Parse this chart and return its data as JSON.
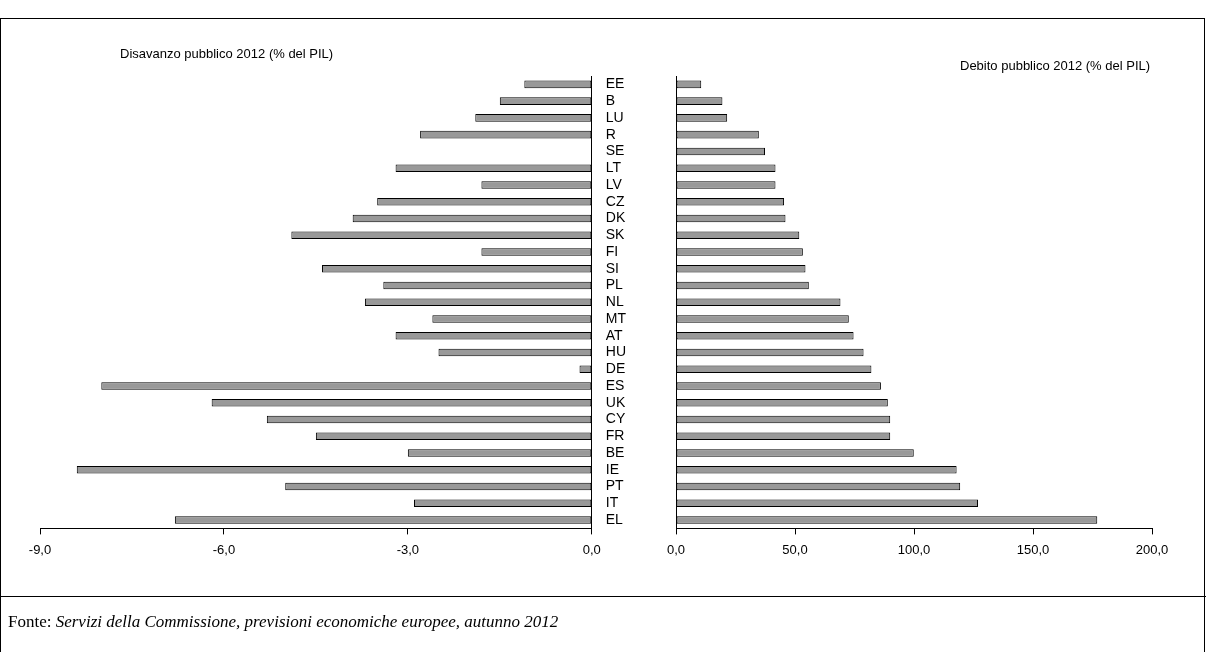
{
  "chart_data": [
    {
      "type": "bar",
      "orientation": "horizontal",
      "title": "Disavanzo pubblico 2012 (% del PIL)",
      "color": "#999999",
      "categories": [
        "EE",
        "B",
        "LU",
        "R",
        "SE",
        "LT",
        "LV",
        "CZ",
        "DK",
        "SK",
        "FI",
        "SI",
        "PL",
        "NL",
        "MT",
        "AT",
        "HU",
        "DE",
        "ES",
        "UK",
        "CY",
        "FR",
        "BE",
        "IE",
        "PT",
        "IT",
        "EL"
      ],
      "values": [
        -1.1,
        -1.5,
        -1.9,
        -2.8,
        null,
        -3.2,
        -1.8,
        -3.5,
        -3.9,
        -4.9,
        -1.8,
        -4.4,
        -3.4,
        -3.7,
        -2.6,
        -3.2,
        -2.5,
        -0.2,
        -8.0,
        -6.2,
        -5.3,
        -4.5,
        -3.0,
        -8.4,
        -5.0,
        -2.9,
        -6.8
      ],
      "xlim": [
        -9,
        0
      ],
      "xticks": [
        {
          "value": -9,
          "label": "-9,0"
        },
        {
          "value": -6,
          "label": "-6,0"
        },
        {
          "value": -3,
          "label": "-3,0"
        },
        {
          "value": 0,
          "label": "0,0"
        }
      ],
      "annotations": [
        "Fonte: Servizi della Commissione, previsioni economiche europee, autunno 2012"
      ]
    },
    {
      "type": "bar",
      "orientation": "horizontal",
      "title": "Debito pubblico 2012 (% del PIL)",
      "color": "#999999",
      "tick_labels": "x",
      "categories": [
        null,
        null,
        null,
        null,
        null,
        null,
        null,
        null,
        null,
        null,
        null,
        null,
        null,
        null,
        null,
        null,
        null,
        null,
        null,
        null,
        null,
        null,
        null,
        null,
        null,
        null,
        null
      ],
      "values": [
        10.6,
        19.5,
        21.5,
        34.8,
        37.4,
        41.8,
        41.8,
        45.4,
        46.0,
        51.8,
        53.3,
        54.4,
        55.8,
        69.1,
        72.6,
        74.6,
        78.8,
        82.1,
        86.1,
        89.0,
        90.0,
        90.0,
        99.9,
        117.9,
        119.4,
        126.9,
        177.0
      ],
      "xlim": [
        0,
        200
      ],
      "xticks": [
        {
          "value": 0,
          "label": "0,0"
        },
        {
          "value": 50,
          "label": "50,0"
        },
        {
          "value": 100,
          "label": "100,0"
        },
        {
          "value": 150,
          "label": "150,0"
        },
        {
          "value": 200,
          "label": "200,0"
        }
      ]
    }
  ]
}
